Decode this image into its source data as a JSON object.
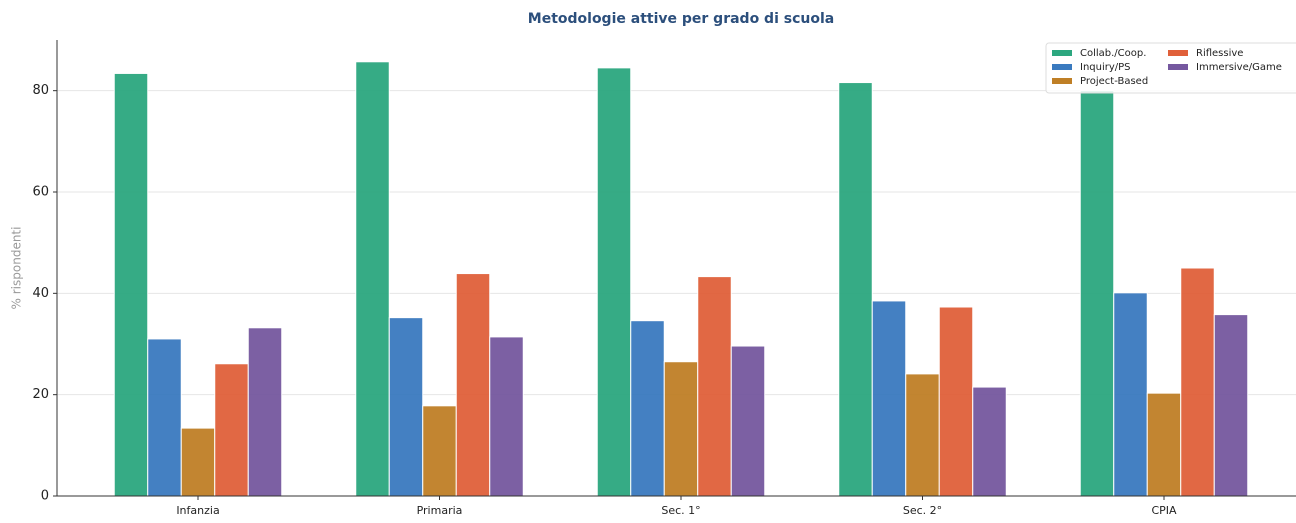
{
  "chart_data": {
    "type": "bar",
    "title": "Metodologie attive per grado di scuola",
    "y_label": "% rispondenti",
    "categories": [
      "Infanzia",
      "Primaria",
      "Sec. 1°",
      "Sec. 2°",
      "CPIA"
    ],
    "series": [
      {
        "name": "Collab./Coop.",
        "color": "#2ca77f",
        "values": [
          83.4,
          85.7,
          84.5,
          81.6,
          80
        ]
      },
      {
        "name": "Inquiry/PS",
        "color": "#3a7abf",
        "values": [
          31.0,
          35.2,
          34.6,
          38.5,
          40.1
        ]
      },
      {
        "name": "Project-Based",
        "color": "#bf7f26",
        "values": [
          13.4,
          17.8,
          26.5,
          24.1,
          20.3
        ]
      },
      {
        "name": "Riflessive",
        "color": "#e0603a",
        "values": [
          26.1,
          43.9,
          43.3,
          37.3,
          45.0
        ]
      },
      {
        "name": "Immersive/Game",
        "color": "#75589f",
        "values": [
          33.2,
          31.4,
          29.6,
          21.5,
          35.8
        ]
      }
    ],
    "ylim": [
      0,
      90
    ],
    "yticks": [
      0,
      20,
      40,
      60,
      80
    ],
    "grid": true,
    "legend": "upper right"
  }
}
